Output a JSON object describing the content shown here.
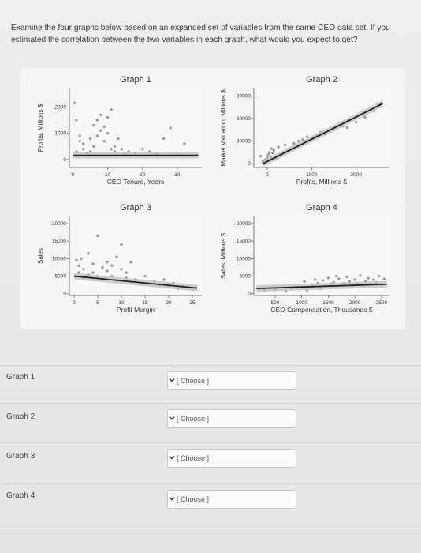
{
  "question": {
    "text": "Examine the four graphs below based on an expanded set of variables from the same CEO data set. If you estimated the correlation between the two variables in each graph, what would you expect to get?"
  },
  "graphs": [
    {
      "title": "Graph 1",
      "xlabel": "CEO Tenure, Years",
      "ylabel": "Profits, Millions $",
      "xticks": [
        "0",
        "10",
        "20",
        "30"
      ],
      "yticks": [
        "0",
        "1000",
        "2000"
      ]
    },
    {
      "title": "Graph 2",
      "xlabel": "Profits, Millions $",
      "ylabel": "Market Valuation, Millions $",
      "xticks": [
        "0",
        "1000",
        "2000"
      ],
      "yticks": [
        "0",
        "30000",
        "60000",
        "90000"
      ]
    },
    {
      "title": "Graph 3",
      "xlabel": "Profit Margin",
      "ylabel": "Sales",
      "xticks": [
        "0",
        "5",
        "10",
        "15",
        "20",
        "25"
      ],
      "yticks": [
        "0",
        "5000",
        "10000",
        "15000",
        "20000"
      ]
    },
    {
      "title": "Graph 4",
      "xlabel": "CEO Compensation, Thousands $",
      "ylabel": "Sales, Millions $",
      "xticks": [
        "500",
        "1000",
        "1500",
        "2000",
        "2500"
      ],
      "yticks": [
        "0",
        "5000",
        "10000",
        "15000",
        "20000"
      ]
    }
  ],
  "chart_data": [
    {
      "type": "scatter",
      "title": "Graph 1",
      "xlabel": "CEO Tenure, Years",
      "ylabel": "Profits, Millions $",
      "xlim": [
        -1,
        37
      ],
      "ylim": [
        -300,
        2700
      ],
      "trend": [
        [
          0,
          160
        ],
        [
          36,
          160
        ]
      ],
      "points": [
        [
          0.5,
          2150
        ],
        [
          1,
          1500
        ],
        [
          1,
          300
        ],
        [
          2,
          900
        ],
        [
          2,
          700
        ],
        [
          3,
          600
        ],
        [
          3,
          400
        ],
        [
          4,
          250
        ],
        [
          5,
          300
        ],
        [
          5,
          800
        ],
        [
          6,
          500
        ],
        [
          6,
          1300
        ],
        [
          7,
          900
        ],
        [
          7,
          1500
        ],
        [
          8,
          1700
        ],
        [
          8,
          1100
        ],
        [
          9,
          1250
        ],
        [
          9,
          700
        ],
        [
          10,
          1600
        ],
        [
          10,
          1000
        ],
        [
          11,
          400
        ],
        [
          11,
          1900
        ],
        [
          12,
          500
        ],
        [
          12,
          300
        ],
        [
          13,
          800
        ],
        [
          14,
          400
        ],
        [
          15,
          200
        ],
        [
          16,
          300
        ],
        [
          18,
          250
        ],
        [
          20,
          400
        ],
        [
          22,
          300
        ],
        [
          24,
          200
        ],
        [
          26,
          800
        ],
        [
          28,
          1200
        ],
        [
          30,
          200
        ],
        [
          32,
          600
        ]
      ]
    },
    {
      "type": "scatter",
      "title": "Graph 2",
      "xlabel": "Profits, Millions $",
      "ylabel": "Market Valuation, Millions $",
      "xlim": [
        -300,
        2750
      ],
      "ylim": [
        -5000,
        100000
      ],
      "trend": [
        [
          -100,
          0
        ],
        [
          2600,
          80000
        ]
      ],
      "points": [
        [
          -150,
          10000
        ],
        [
          -100,
          3000
        ],
        [
          -50,
          5000
        ],
        [
          0,
          8000
        ],
        [
          20,
          12000
        ],
        [
          50,
          15000
        ],
        [
          80,
          9000
        ],
        [
          100,
          20000
        ],
        [
          120,
          14000
        ],
        [
          150,
          18000
        ],
        [
          200,
          6000
        ],
        [
          250,
          22000
        ],
        [
          300,
          11000
        ],
        [
          400,
          25000
        ],
        [
          500,
          20000
        ],
        [
          600,
          27000
        ],
        [
          700,
          30000
        ],
        [
          800,
          32000
        ],
        [
          900,
          36000
        ],
        [
          1000,
          34000
        ],
        [
          1100,
          38000
        ],
        [
          1200,
          42000
        ],
        [
          1300,
          39000
        ],
        [
          1500,
          45000
        ],
        [
          1700,
          50000
        ],
        [
          1800,
          48000
        ],
        [
          2000,
          55000
        ],
        [
          2200,
          62000
        ],
        [
          2400,
          70000
        ],
        [
          2500,
          78000
        ],
        [
          2550,
          80000
        ]
      ]
    },
    {
      "type": "scatter",
      "title": "Graph 3",
      "xlabel": "Profit Margin",
      "ylabel": "Sales",
      "xlim": [
        -1,
        27
      ],
      "ylim": [
        -500,
        22000
      ],
      "trend": [
        [
          0,
          5000
        ],
        [
          26,
          1600
        ]
      ],
      "points": [
        [
          0.5,
          9500
        ],
        [
          1,
          8000
        ],
        [
          1,
          6000
        ],
        [
          1.5,
          10000
        ],
        [
          2,
          4500
        ],
        [
          2,
          7000
        ],
        [
          3,
          5500
        ],
        [
          3,
          11500
        ],
        [
          4,
          6000
        ],
        [
          4,
          8500
        ],
        [
          5,
          5000
        ],
        [
          5,
          16500
        ],
        [
          6,
          7500
        ],
        [
          6,
          4000
        ],
        [
          7,
          9000
        ],
        [
          7,
          6500
        ],
        [
          8,
          5000
        ],
        [
          8,
          8000
        ],
        [
          9,
          10500
        ],
        [
          9,
          3800
        ],
        [
          10,
          7000
        ],
        [
          10,
          14000
        ],
        [
          11,
          4500
        ],
        [
          11,
          6000
        ],
        [
          12,
          3500
        ],
        [
          12,
          9000
        ],
        [
          13,
          4000
        ],
        [
          14,
          3000
        ],
        [
          15,
          5000
        ],
        [
          16,
          2800
        ],
        [
          17,
          3500
        ],
        [
          18,
          2500
        ],
        [
          19,
          4000
        ],
        [
          20,
          2000
        ],
        [
          21,
          3000
        ],
        [
          22,
          1500
        ],
        [
          23,
          2500
        ],
        [
          24,
          1800
        ],
        [
          25,
          1200
        ]
      ]
    },
    {
      "type": "scatter",
      "title": "Graph 4",
      "xlabel": "CEO Compensation, Thousands $",
      "ylabel": "Sales, Millions $",
      "xlim": [
        100,
        2650
      ],
      "ylim": [
        -500,
        22000
      ],
      "trend": [
        [
          150,
          1500
        ],
        [
          2600,
          2700
        ]
      ],
      "points": [
        [
          300,
          1000
        ],
        [
          500,
          1200
        ],
        [
          700,
          800
        ],
        [
          800,
          1500
        ],
        [
          900,
          2000
        ],
        [
          1000,
          1800
        ],
        [
          1050,
          3500
        ],
        [
          1100,
          1000
        ],
        [
          1200,
          2500
        ],
        [
          1250,
          4000
        ],
        [
          1300,
          3000
        ],
        [
          1350,
          1500
        ],
        [
          1400,
          3800
        ],
        [
          1450,
          2200
        ],
        [
          1500,
          4500
        ],
        [
          1550,
          2800
        ],
        [
          1600,
          3200
        ],
        [
          1650,
          5000
        ],
        [
          1700,
          4200
        ],
        [
          1750,
          2600
        ],
        [
          1800,
          3000
        ],
        [
          1850,
          4800
        ],
        [
          1900,
          3500
        ],
        [
          1950,
          2200
        ],
        [
          2000,
          4000
        ],
        [
          2050,
          3000
        ],
        [
          2100,
          5200
        ],
        [
          2150,
          2500
        ],
        [
          2200,
          3600
        ],
        [
          2250,
          4400
        ],
        [
          2300,
          2800
        ],
        [
          2350,
          4000
        ],
        [
          2400,
          3200
        ],
        [
          2450,
          5000
        ],
        [
          2500,
          2600
        ],
        [
          2550,
          4200
        ]
      ]
    }
  ],
  "answers": [
    {
      "label": "Graph 1",
      "select_text": "[ Choose ]"
    },
    {
      "label": "Graph 2",
      "select_text": "[ Choose ]"
    },
    {
      "label": "Graph 3",
      "select_text": "[ Choose ]"
    },
    {
      "label": "Graph 4",
      "select_text": "[ Choose ]"
    }
  ],
  "colors": {
    "points": "#9a9a9a",
    "trend": "#1f1f1f",
    "band": "#bdbdbd",
    "panel_bg": "#f5f5f4"
  }
}
